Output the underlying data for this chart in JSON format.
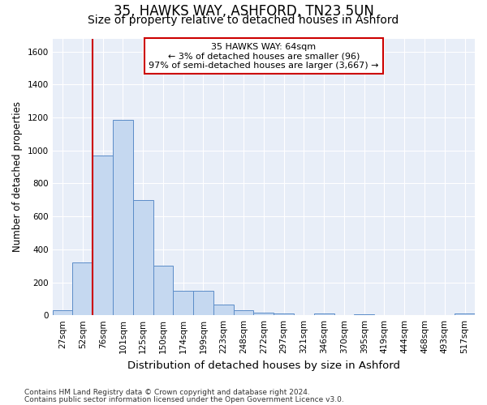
{
  "title1": "35, HAWKS WAY, ASHFORD, TN23 5UN",
  "title2": "Size of property relative to detached houses in Ashford",
  "xlabel": "Distribution of detached houses by size in Ashford",
  "ylabel": "Number of detached properties",
  "categories": [
    "27sqm",
    "52sqm",
    "76sqm",
    "101sqm",
    "125sqm",
    "150sqm",
    "174sqm",
    "199sqm",
    "223sqm",
    "248sqm",
    "272sqm",
    "297sqm",
    "321sqm",
    "346sqm",
    "370sqm",
    "395sqm",
    "419sqm",
    "444sqm",
    "468sqm",
    "493sqm",
    "517sqm"
  ],
  "values": [
    28,
    322,
    970,
    1185,
    700,
    300,
    150,
    150,
    65,
    28,
    18,
    12,
    0,
    12,
    0,
    8,
    0,
    0,
    0,
    0,
    12
  ],
  "bar_color": "#c5d8f0",
  "bar_edge_color": "#5b8cc8",
  "vline_color": "#cc0000",
  "vline_x": 1.5,
  "annotation_text": "35 HAWKS WAY: 64sqm\n← 3% of detached houses are smaller (96)\n97% of semi-detached houses are larger (3,667) →",
  "annotation_box_color": "#ffffff",
  "annotation_box_edge": "#cc0000",
  "ylim": [
    0,
    1680
  ],
  "yticks": [
    0,
    200,
    400,
    600,
    800,
    1000,
    1200,
    1400,
    1600
  ],
  "background_color": "#e8eef8",
  "grid_color": "#ffffff",
  "footer1": "Contains HM Land Registry data © Crown copyright and database right 2024.",
  "footer2": "Contains public sector information licensed under the Open Government Licence v3.0.",
  "title1_fontsize": 12,
  "title2_fontsize": 10,
  "xlabel_fontsize": 9.5,
  "ylabel_fontsize": 8.5,
  "tick_fontsize": 7.5,
  "ann_fontsize": 8,
  "footer_fontsize": 6.5
}
